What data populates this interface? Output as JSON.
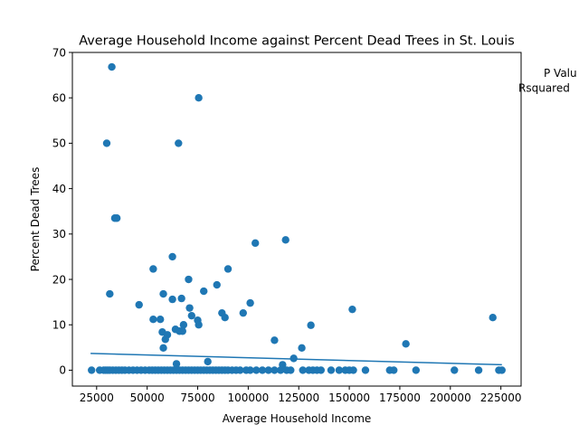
{
  "chart_data": {
    "type": "scatter",
    "title": "Average Household Income against Percent Dead Trees in St. Louis",
    "xlabel": "Average Household Income",
    "ylabel": "Percent Dead Trees",
    "xlim": [
      13000,
      235000
    ],
    "ylim": [
      -3.5,
      70
    ],
    "xticks": [
      25000,
      50000,
      75000,
      100000,
      125000,
      150000,
      175000,
      200000,
      225000
    ],
    "yticks": [
      0,
      10,
      20,
      30,
      40,
      50,
      60,
      70
    ],
    "point_color": "#1f77b4",
    "line_color": "#1f77b4",
    "annotations": [
      "P Valu",
      "Rsquared"
    ],
    "trendline": {
      "x": [
        22000,
        225500
      ],
      "y": [
        3.7,
        1.2
      ]
    },
    "points": [
      [
        22500,
        0
      ],
      [
        26500,
        0
      ],
      [
        28500,
        0
      ],
      [
        29500,
        0
      ],
      [
        30500,
        0
      ],
      [
        31500,
        0
      ],
      [
        33000,
        0
      ],
      [
        34500,
        0
      ],
      [
        36000,
        0
      ],
      [
        37500,
        0
      ],
      [
        39000,
        0
      ],
      [
        41000,
        0
      ],
      [
        43000,
        0
      ],
      [
        45000,
        0
      ],
      [
        47000,
        0
      ],
      [
        49000,
        0
      ],
      [
        51000,
        0
      ],
      [
        52500,
        0
      ],
      [
        54000,
        0
      ],
      [
        55500,
        0
      ],
      [
        57000,
        0
      ],
      [
        58500,
        0
      ],
      [
        60000,
        0
      ],
      [
        61500,
        0
      ],
      [
        63000,
        0
      ],
      [
        64500,
        0
      ],
      [
        66000,
        0
      ],
      [
        67500,
        0
      ],
      [
        69000,
        0
      ],
      [
        70500,
        0
      ],
      [
        72000,
        0
      ],
      [
        73500,
        0
      ],
      [
        75000,
        0
      ],
      [
        76500,
        0
      ],
      [
        78000,
        0
      ],
      [
        79500,
        0
      ],
      [
        81000,
        0
      ],
      [
        82500,
        0
      ],
      [
        84000,
        0
      ],
      [
        85500,
        0
      ],
      [
        87000,
        0
      ],
      [
        88500,
        0
      ],
      [
        90000,
        0
      ],
      [
        92000,
        0
      ],
      [
        94000,
        0
      ],
      [
        96000,
        0
      ],
      [
        99000,
        0
      ],
      [
        101000,
        0
      ],
      [
        104000,
        0
      ],
      [
        107000,
        0
      ],
      [
        110000,
        0
      ],
      [
        113000,
        0
      ],
      [
        116000,
        0
      ],
      [
        119000,
        0
      ],
      [
        121000,
        0
      ],
      [
        127000,
        0
      ],
      [
        130000,
        0
      ],
      [
        132000,
        0
      ],
      [
        134000,
        0
      ],
      [
        136000,
        0
      ],
      [
        141000,
        0
      ],
      [
        145000,
        0
      ],
      [
        148000,
        0
      ],
      [
        150000,
        0
      ],
      [
        152000,
        0
      ],
      [
        158000,
        0
      ],
      [
        170000,
        0
      ],
      [
        172000,
        0
      ],
      [
        183000,
        0
      ],
      [
        202000,
        0
      ],
      [
        214000,
        0
      ],
      [
        224000,
        0
      ],
      [
        225500,
        0
      ],
      [
        32500,
        66.8
      ],
      [
        75500,
        60
      ],
      [
        30000,
        50
      ],
      [
        65500,
        50
      ],
      [
        34000,
        33.5
      ],
      [
        35000,
        33.5
      ],
      [
        103500,
        28
      ],
      [
        118500,
        28.7
      ],
      [
        62500,
        25
      ],
      [
        53000,
        22.3
      ],
      [
        90000,
        22.3
      ],
      [
        70500,
        20
      ],
      [
        84500,
        18.8
      ],
      [
        31500,
        16.8
      ],
      [
        58000,
        16.8
      ],
      [
        78000,
        17.4
      ],
      [
        62500,
        15.6
      ],
      [
        67000,
        15.8
      ],
      [
        46000,
        14.4
      ],
      [
        71000,
        13.7
      ],
      [
        101000,
        14.8
      ],
      [
        151500,
        13.4
      ],
      [
        87000,
        12.6
      ],
      [
        97500,
        12.6
      ],
      [
        72000,
        12
      ],
      [
        88500,
        11.6
      ],
      [
        221000,
        11.6
      ],
      [
        53000,
        11.2
      ],
      [
        56500,
        11.2
      ],
      [
        75000,
        11
      ],
      [
        68000,
        10
      ],
      [
        75500,
        10
      ],
      [
        131000,
        9.9
      ],
      [
        64000,
        9
      ],
      [
        66000,
        8.6
      ],
      [
        67500,
        8.6
      ],
      [
        57500,
        8.4
      ],
      [
        60000,
        7.8
      ],
      [
        59000,
        6.8
      ],
      [
        113000,
        6.6
      ],
      [
        178000,
        5.8
      ],
      [
        58000,
        4.9
      ],
      [
        126500,
        4.9
      ],
      [
        122500,
        2.6
      ],
      [
        80000,
        1.9
      ],
      [
        64500,
        1.4
      ],
      [
        117000,
        1.2
      ]
    ]
  }
}
